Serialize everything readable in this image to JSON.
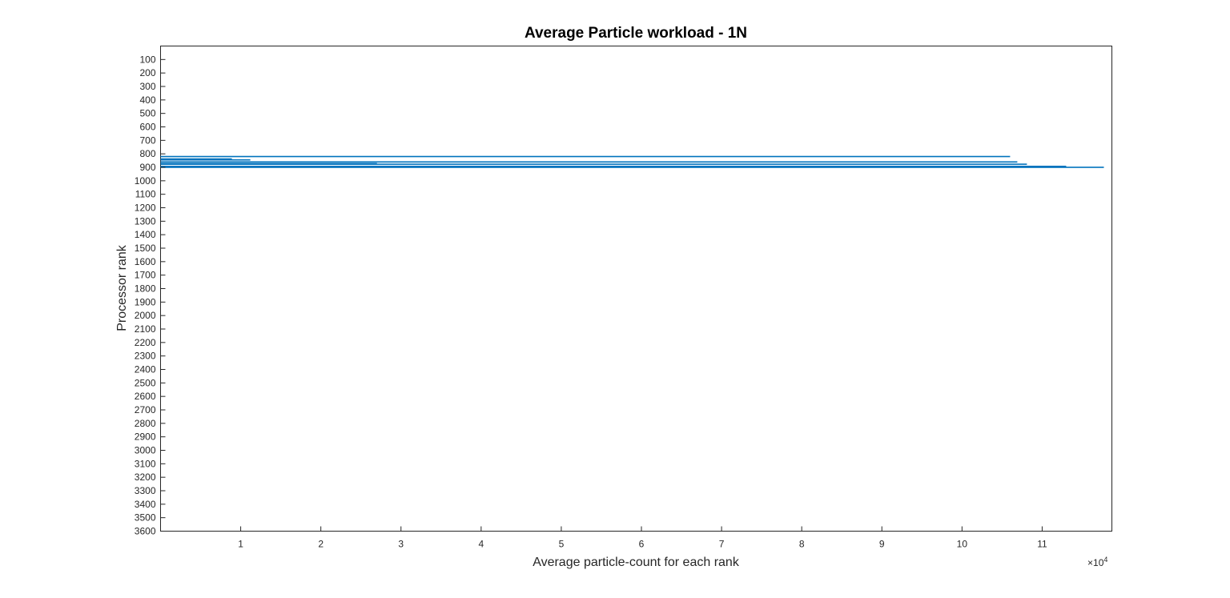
{
  "chart_data": {
    "type": "bar",
    "orientation": "horizontal",
    "title": "Average Particle workload - 1N",
    "xlabel": "Average particle-count for each rank",
    "ylabel": "Processor rank",
    "x_exponent_base": "10",
    "x_exponent_power": "4",
    "x_ticks": [
      "1",
      "2",
      "3",
      "4",
      "5",
      "6",
      "7",
      "8",
      "9",
      "10",
      "11"
    ],
    "y_ticks": [
      "100",
      "200",
      "300",
      "400",
      "500",
      "600",
      "700",
      "800",
      "900",
      "1000",
      "1100",
      "1200",
      "1300",
      "1400",
      "1500",
      "1600",
      "1700",
      "1800",
      "1900",
      "2000",
      "2100",
      "2200",
      "2300",
      "2400",
      "2500",
      "2600",
      "2700",
      "2800",
      "2900",
      "3000",
      "3100",
      "3200",
      "3300",
      "3400",
      "3500",
      "3600"
    ],
    "xlim": [
      0,
      118700
    ],
    "ylim": [
      0,
      3600
    ],
    "y_direction": "reversed",
    "bar_color": "#0072bd",
    "grid": false,
    "bars": [
      {
        "rank": 820,
        "value": 106000
      },
      {
        "rank": 838,
        "value": 8900
      },
      {
        "rank": 845,
        "value": 11200
      },
      {
        "rank": 860,
        "value": 106900
      },
      {
        "rank": 872,
        "value": 27000
      },
      {
        "rank": 877,
        "value": 108100
      },
      {
        "rank": 893,
        "value": 113000
      },
      {
        "rank": 900,
        "value": 117700
      }
    ]
  }
}
